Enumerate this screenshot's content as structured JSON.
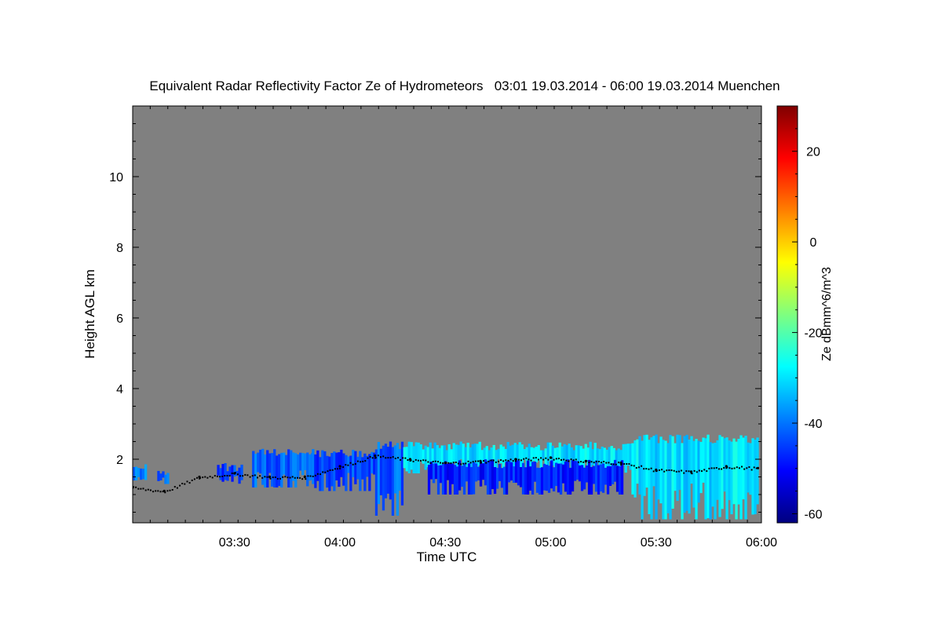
{
  "chart_data": {
    "type": "heatmap",
    "title": "Equivalent Radar Reflectivity Factor Ze of Hydrometeors   03:01 19.03.2014 - 06:00 19.03.2014 Muenchen",
    "xlabel": "Time UTC",
    "ylabel": "Height AGL km",
    "colorbar_label": "Ze dBmm^6/m^3",
    "x_range": [
      "03:01",
      "06:00"
    ],
    "x_ticks": [
      "03:30",
      "04:00",
      "04:30",
      "05:00",
      "05:30",
      "06:00"
    ],
    "y_range_km": [
      0.2,
      12.0
    ],
    "y_ticks": [
      "2",
      "4",
      "6",
      "8",
      "10"
    ],
    "colorbar_range": [
      -62,
      30
    ],
    "colorbar_ticks": [
      "-60",
      "-40",
      "-20",
      "0",
      "20"
    ],
    "background_color": "#808080",
    "colormap": [
      "#00007f",
      "#0000ff",
      "#007fff",
      "#00ffff",
      "#7fff7f",
      "#ffff00",
      "#ff7f00",
      "#ff0000",
      "#7f0000"
    ],
    "echo_regions": [
      {
        "time_start": "03:01",
        "time_end": "03:05",
        "base_km": 1.4,
        "top_km": 1.9,
        "ze_dbz": -40
      },
      {
        "time_start": "03:08",
        "time_end": "03:11",
        "base_km": 1.3,
        "top_km": 1.7,
        "ze_dbz": -42
      },
      {
        "time_start": "03:25",
        "time_end": "03:32",
        "base_km": 1.3,
        "top_km": 1.9,
        "ze_dbz": -45
      },
      {
        "time_start": "03:35",
        "time_end": "03:52",
        "base_km": 1.2,
        "top_km": 2.3,
        "ze_dbz": -42
      },
      {
        "time_start": "03:52",
        "time_end": "04:10",
        "base_km": 1.1,
        "top_km": 2.3,
        "ze_dbz": -44
      },
      {
        "time_start": "04:10",
        "time_end": "04:18",
        "base_km": 0.4,
        "top_km": 2.5,
        "ze_dbz": -42
      },
      {
        "time_start": "04:18",
        "time_end": "05:23",
        "base_km": 1.6,
        "top_km": 2.5,
        "ze_dbz": -30
      },
      {
        "time_start": "04:25",
        "time_end": "05:20",
        "base_km": 1.0,
        "top_km": 2.0,
        "ze_dbz": -48
      },
      {
        "time_start": "05:23",
        "time_end": "05:59",
        "base_km": 0.3,
        "top_km": 2.7,
        "ze_dbz": -30
      }
    ],
    "cloud_base_km": [
      [
        "03:01",
        1.2
      ],
      [
        "03:10",
        1.1
      ],
      [
        "03:20",
        1.5
      ],
      [
        "03:30",
        1.6
      ],
      [
        "03:40",
        1.5
      ],
      [
        "03:50",
        1.5
      ],
      [
        "04:00",
        1.8
      ],
      [
        "04:10",
        2.1
      ],
      [
        "04:20",
        2.0
      ],
      [
        "04:30",
        1.9
      ],
      [
        "04:40",
        1.95
      ],
      [
        "04:50",
        2.0
      ],
      [
        "05:00",
        2.05
      ],
      [
        "05:10",
        1.95
      ],
      [
        "05:20",
        1.9
      ],
      [
        "05:30",
        1.7
      ],
      [
        "05:40",
        1.65
      ],
      [
        "05:50",
        1.8
      ],
      [
        "05:59",
        1.75
      ]
    ]
  }
}
